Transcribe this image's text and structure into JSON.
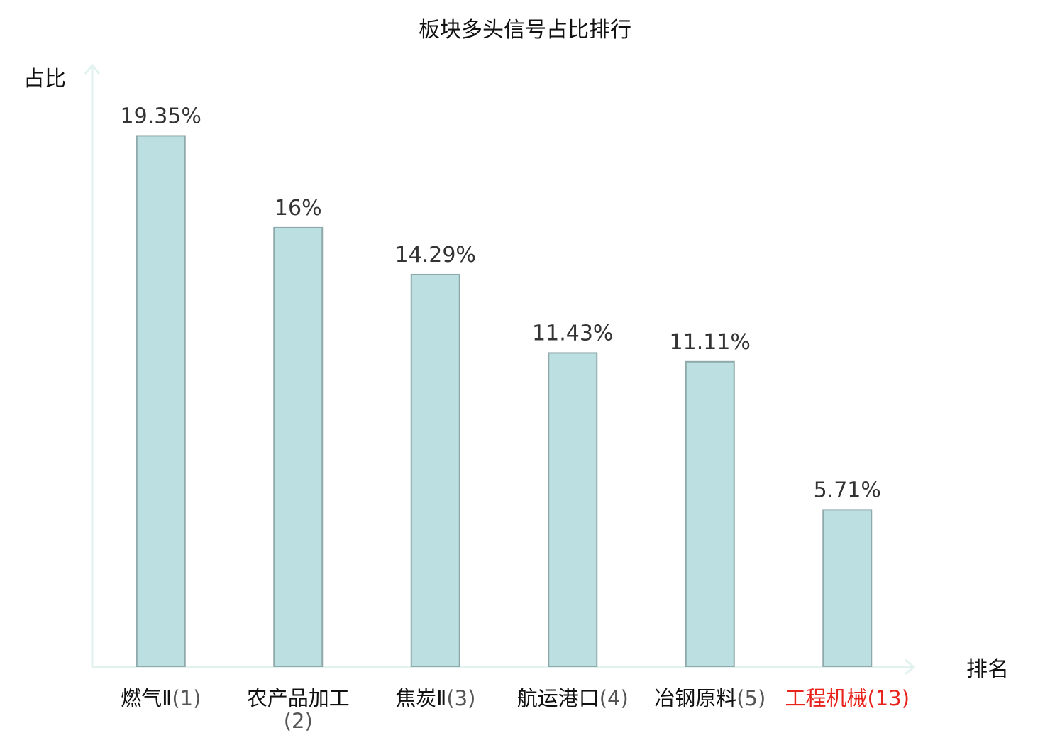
{
  "chart_data": {
    "type": "bar",
    "title": "板块多头信号占比排行",
    "ylabel": "占比",
    "xlabel": "排名",
    "ylim": [
      0,
      21.2
    ],
    "grid": false,
    "categories": [
      {
        "name": "燃气Ⅱ",
        "rank": "(1)",
        "highlight": false
      },
      {
        "name": "农产品加工",
        "rank": "(2)",
        "highlight": false
      },
      {
        "name": "焦炭Ⅱ",
        "rank": "(3)",
        "highlight": false
      },
      {
        "name": "航运港口",
        "rank": "(4)",
        "highlight": false
      },
      {
        "name": "冶钢原料",
        "rank": "(5)",
        "highlight": false
      },
      {
        "name": "工程机械",
        "rank": "(13)",
        "highlight": true
      }
    ],
    "values": [
      19.35,
      16,
      14.29,
      11.43,
      11.11,
      5.71
    ],
    "value_labels": [
      "19.35%",
      "16%",
      "14.29%",
      "11.43%",
      "11.11%",
      "5.71%"
    ],
    "colors": {
      "bar_fill": "#bce0e2",
      "bar_stroke": "#8fa9aa",
      "axis": "#e2f2ef",
      "highlight_text": "#e8231c"
    }
  }
}
